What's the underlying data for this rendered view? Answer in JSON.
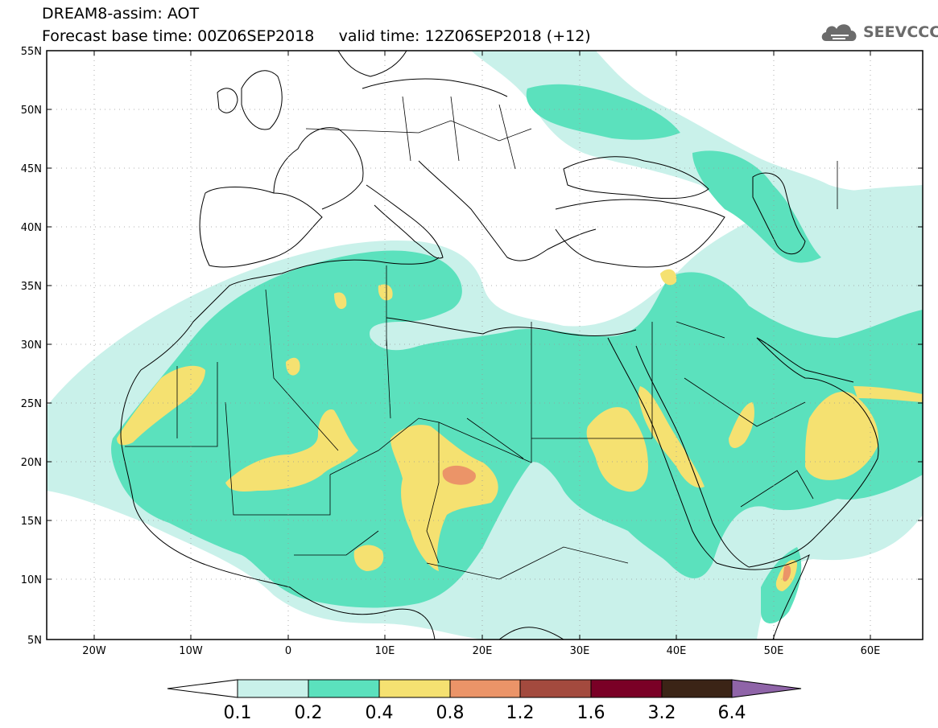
{
  "header": {
    "title_line1": "DREAM8-assim: AOT",
    "title_line2": "Forecast base time: 00Z06SEP2018     valid time: 12Z06SEP2018 (+12)",
    "logo_text": "SEEVCCC",
    "logo_icon": "cloud-icon"
  },
  "map": {
    "lat_labels": [
      "55N",
      "50N",
      "45N",
      "40N",
      "35N",
      "30N",
      "25N",
      "20N",
      "15N",
      "10N",
      "5N"
    ],
    "lon_labels": [
      "20W",
      "10W",
      "0",
      "10E",
      "20E",
      "30E",
      "40E",
      "50E",
      "60E"
    ],
    "land_color": "#ffffff",
    "border_color": "#000000"
  },
  "colorbar": {
    "labels": [
      "0.1",
      "0.2",
      "0.4",
      "0.8",
      "1.2",
      "1.6",
      "3.2",
      "6.4"
    ],
    "colors": [
      "#ffffff",
      "#c9f1ea",
      "#5be1bd",
      "#f5e171",
      "#eb9468",
      "#a34a3e",
      "#7a0026",
      "#3b2416",
      "#8f64a8"
    ]
  }
}
